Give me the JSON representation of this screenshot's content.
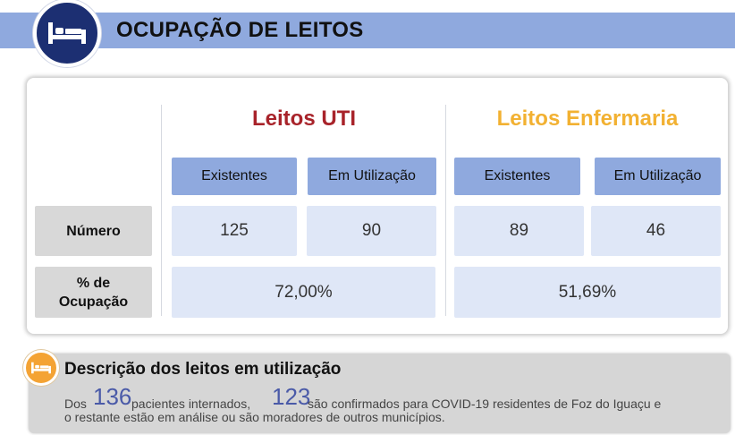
{
  "header": {
    "title": "OCUPAÇÃO DE LEITOS",
    "icon": "bed-icon",
    "colors": {
      "band": "#8fa9de",
      "circle": "#1c2f72"
    }
  },
  "table": {
    "groups": [
      {
        "title": "Leitos UTI",
        "color": "#a8232a",
        "columns": [
          "Existentes",
          "Em Utilização"
        ],
        "numero": [
          "125",
          "90"
        ],
        "ocupacao": "72,00%"
      },
      {
        "title": "Leitos Enfermaria",
        "color": "#f2b132",
        "columns": [
          "Existentes",
          "Em Utilização"
        ],
        "numero": [
          "89",
          "46"
        ],
        "ocupacao": "51,69%"
      }
    ],
    "row_labels": {
      "numero": "Número",
      "ocupacao_line1": "% de",
      "ocupacao_line2": "Ocupação"
    }
  },
  "description": {
    "icon": "bed-icon",
    "icon_color": "#f4a334",
    "title": "Descrição dos leitos em utilização",
    "text_prefix": "Dos",
    "patients": "136",
    "text_middle": "pacientes internados,",
    "confirmed": "123",
    "text_suffix": "são confirmados para COVID-19 residentes de Foz do Iguaçu e",
    "line2": "o restante estão em análise ou são moradores de outros municípios."
  }
}
